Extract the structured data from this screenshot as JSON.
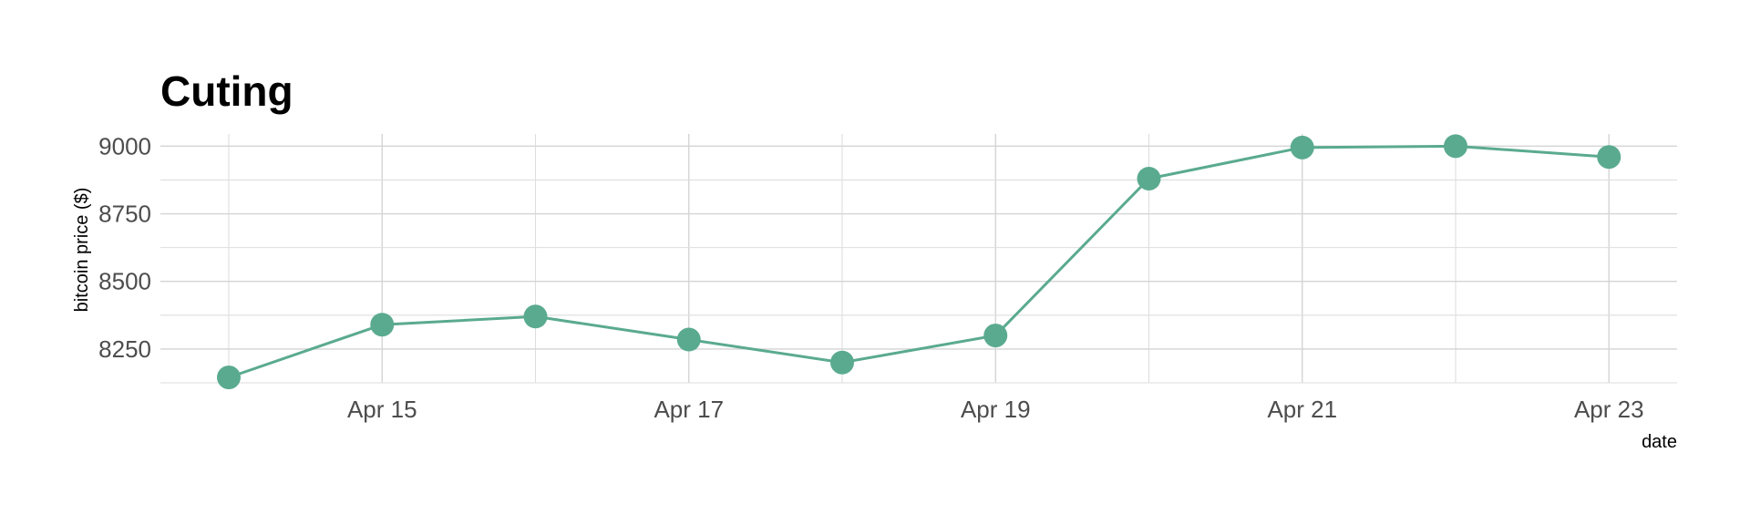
{
  "chart_data": {
    "type": "line",
    "title": "Cuting",
    "xlabel": "date",
    "ylabel": "bitcoin price ($)",
    "x": [
      "Apr 14",
      "Apr 15",
      "Apr 16",
      "Apr 17",
      "Apr 18",
      "Apr 19",
      "Apr 20",
      "Apr 21",
      "Apr 22",
      "Apr 23"
    ],
    "x_tick_labels": [
      "Apr 15",
      "Apr 17",
      "Apr 19",
      "Apr 21",
      "Apr 23"
    ],
    "series": [
      {
        "values": [
          8145,
          8340,
          8370,
          8285,
          8200,
          8300,
          8880,
          8995,
          9000,
          8960
        ],
        "color": "#5aaa90"
      }
    ],
    "y_ticks": [
      8250,
      8500,
      8750,
      9000
    ],
    "ylim": [
      8125,
      9045
    ],
    "grid": true,
    "legend": "none"
  }
}
